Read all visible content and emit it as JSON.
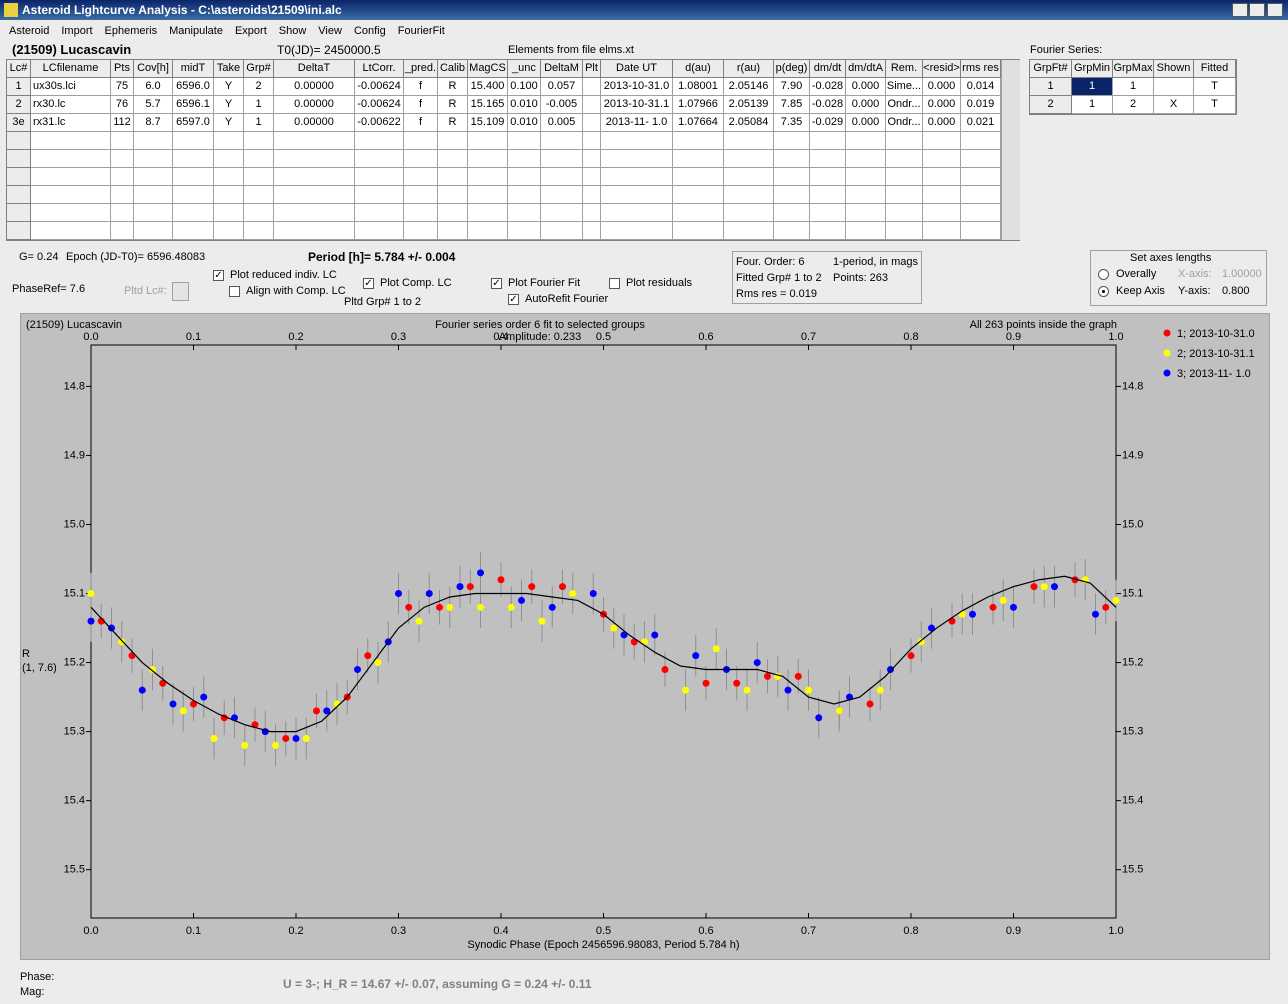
{
  "window": {
    "title": "Asteroid Lightcurve Analysis - C:\\asteroids\\21509\\ini.alc",
    "menu": [
      "Asteroid",
      "Import",
      "Ephemeris",
      "Manipulate",
      "Export",
      "Show",
      "View",
      "Config",
      "FourierFit"
    ]
  },
  "header": {
    "asteroid": "(21509) Lucascavin",
    "t0": "T0(JD)= 2450000.5",
    "elements": "Elements from file elms.xt"
  },
  "table": {
    "columns": [
      "Lc#",
      "LCfilename",
      "Pts",
      "Cov[h]",
      "midT",
      "Take",
      "Grp#",
      "DeltaT",
      "LtCorr.",
      "_pred.",
      "Calib",
      "MagCS",
      "_unc",
      "DeltaM",
      "Plt",
      "Date UT",
      "d(au)",
      "r(au)",
      "p(deg)",
      "dm/dt",
      "dm/dtA",
      "Rem.",
      "<resid>",
      "rms res"
    ],
    "rows": [
      [
        "1",
        "ux30s.lci",
        "75",
        "6.0",
        "6596.0",
        "Y",
        "2",
        "0.00000",
        "-0.00624",
        "f",
        "R",
        "15.400",
        "0.100",
        "0.057",
        null,
        "2013-10-31.0",
        "1.08001",
        "2.05146",
        "7.90",
        "-0.028",
        "0.000",
        "Sime...",
        "0.000",
        "0.014"
      ],
      [
        "2",
        "rx30.lc",
        "76",
        "5.7",
        "6596.1",
        "Y",
        "1",
        "0.00000",
        "-0.00624",
        "f",
        "R",
        "15.165",
        "0.010",
        "-0.005",
        null,
        "2013-10-31.1",
        "1.07966",
        "2.05139",
        "7.85",
        "-0.028",
        "0.000",
        "Ondr...",
        "0.000",
        "0.019"
      ],
      [
        "3e",
        "rx31.lc",
        "112",
        "8.7",
        "6597.0",
        "Y",
        "1",
        "0.00000",
        "-0.00622",
        "f",
        "R",
        "15.109",
        "0.010",
        "0.005",
        null,
        "2013-11- 1.0",
        "1.07664",
        "2.05084",
        "7.35",
        "-0.029",
        "0.000",
        "Ondr...",
        "0.000",
        "0.021"
      ]
    ]
  },
  "fourier_table": {
    "title": "Fourier Series:",
    "columns": [
      "GrpFt#",
      "GrpMin",
      "GrpMax",
      "Shown",
      "Fitted"
    ],
    "rows": [
      [
        "1",
        "1",
        "1",
        null,
        "T"
      ],
      [
        "2",
        "1",
        "2",
        "X",
        "T"
      ]
    ]
  },
  "controls": {
    "g": "G= 0.24",
    "epoch": "Epoch (JD-T0)= 6596.48083",
    "period": "Period [h]= 5.784 +/- 0.004",
    "phaseref": "PhaseRef= 7.6",
    "pltd_lc": "Pltd Lc#:",
    "pltd_grp": "Pltd Grp#  1   to   2",
    "checkboxes": [
      {
        "label": "Plot reduced indiv. LC",
        "checked": true
      },
      {
        "label": "Align with Comp. LC",
        "checked": false
      },
      {
        "label": "Plot Comp. LC",
        "checked": true
      },
      {
        "label": "Plot Fourier Fit",
        "checked": true
      },
      {
        "label": "AutoRefit Fourier",
        "checked": true
      },
      {
        "label": "Plot residuals",
        "checked": false
      }
    ]
  },
  "info": [
    "Four. Order:  6",
    "1-period, in mags",
    "Fitted Grp# 1 to 2",
    "Points: 263",
    "Rms res     = 0.019"
  ],
  "axes_box": {
    "title": "Set axes lengths",
    "radios": [
      {
        "label": "Overally",
        "checked": false
      },
      {
        "label": "Keep Axis",
        "checked": true
      }
    ],
    "x_label": "X-axis:",
    "x_value": "1.00000",
    "y_label": "Y-axis:",
    "y_value": "0.800"
  },
  "chart_data": {
    "type": "scatter",
    "object": "(21509) Lucascavin",
    "title": "Fourier series order 6 fit to selected groups",
    "subtitle": "Amplitude: 0.233",
    "annotation": "All 263 points inside the graph",
    "xlabel": "Synodic Phase (Epoch 2456596.98083, Period 5.784 h)",
    "ylabel": [
      "R",
      "(1, 7.6)"
    ],
    "xlim": [
      0,
      1
    ],
    "xticks": [
      {
        "value": 0,
        "label": "0.0"
      },
      0.1,
      0.2,
      0.3,
      0.4,
      0.5,
      0.6,
      0.7,
      0.8,
      0.9,
      {
        "value": 1,
        "label": "1.0"
      }
    ],
    "ylim": [
      15.57,
      14.74
    ],
    "yticks": [
      14.8,
      14.9,
      {
        "value": 15,
        "label": "15.0"
      },
      15.1,
      15.2,
      15.3,
      15.4,
      15.5
    ],
    "series": [
      {
        "name": "1; 2013-10-31.0",
        "color": "#ff0000",
        "error": 0.025,
        "x": [
          0.01,
          0.04,
          0.07,
          0.1,
          0.13,
          0.16,
          0.19,
          0.22,
          0.25,
          0.27,
          0.31,
          0.34,
          0.37,
          0.4,
          0.43,
          0.46,
          0.5,
          0.53,
          0.56,
          0.6,
          0.63,
          0.66,
          0.69,
          0.73,
          0.76,
          0.8,
          0.84,
          0.88,
          0.92,
          0.96,
          0.99
        ],
        "values": [
          15.14,
          15.19,
          15.23,
          15.26,
          15.28,
          15.29,
          15.31,
          15.27,
          15.25,
          15.19,
          15.12,
          15.12,
          15.09,
          15.08,
          15.09,
          15.09,
          15.13,
          15.17,
          15.21,
          15.23,
          15.23,
          15.22,
          15.22,
          15.27,
          15.26,
          15.19,
          15.14,
          15.12,
          15.09,
          15.08,
          15.12
        ]
      },
      {
        "name": "2; 2013-10-31.1",
        "color": "#ffff00",
        "error": 0.03,
        "x": [
          0.0,
          0.03,
          0.06,
          0.09,
          0.12,
          0.15,
          0.18,
          0.21,
          0.24,
          0.28,
          0.32,
          0.35,
          0.38,
          0.41,
          0.44,
          0.47,
          0.51,
          0.54,
          0.58,
          0.61,
          0.64,
          0.67,
          0.7,
          0.73,
          0.77,
          0.81,
          0.85,
          0.89,
          0.93,
          0.97,
          1.0
        ],
        "values": [
          15.1,
          15.17,
          15.21,
          15.27,
          15.31,
          15.32,
          15.32,
          15.31,
          15.26,
          15.2,
          15.14,
          15.12,
          15.12,
          15.12,
          15.14,
          15.1,
          15.15,
          15.17,
          15.24,
          15.18,
          15.24,
          15.22,
          15.24,
          15.27,
          15.24,
          15.17,
          15.13,
          15.11,
          15.09,
          15.08,
          15.11
        ]
      },
      {
        "name": "3; 2013-11- 1.0",
        "color": "#0000ff",
        "error": 0.03,
        "x": [
          0.0,
          0.02,
          0.05,
          0.08,
          0.11,
          0.14,
          0.17,
          0.2,
          0.23,
          0.26,
          0.29,
          0.3,
          0.33,
          0.36,
          0.38,
          0.42,
          0.45,
          0.49,
          0.52,
          0.55,
          0.59,
          0.62,
          0.65,
          0.68,
          0.71,
          0.74,
          0.78,
          0.82,
          0.86,
          0.9,
          0.94,
          0.98
        ],
        "values": [
          15.14,
          15.15,
          15.24,
          15.26,
          15.25,
          15.28,
          15.3,
          15.31,
          15.27,
          15.21,
          15.17,
          15.1,
          15.1,
          15.09,
          15.07,
          15.11,
          15.12,
          15.1,
          15.16,
          15.16,
          15.19,
          15.21,
          15.2,
          15.24,
          15.28,
          15.25,
          15.21,
          15.15,
          15.13,
          15.12,
          15.09,
          15.13
        ]
      }
    ],
    "fit": {
      "color": "#000000",
      "x": [
        0,
        0.025,
        0.05,
        0.075,
        0.1,
        0.125,
        0.15,
        0.175,
        0.2,
        0.225,
        0.25,
        0.275,
        0.3,
        0.325,
        0.35,
        0.375,
        0.4,
        0.425,
        0.45,
        0.475,
        0.5,
        0.525,
        0.55,
        0.575,
        0.6,
        0.625,
        0.65,
        0.675,
        0.7,
        0.725,
        0.75,
        0.775,
        0.8,
        0.825,
        0.85,
        0.875,
        0.9,
        0.925,
        0.95,
        0.975,
        1
      ],
      "values": [
        15.12,
        15.16,
        15.2,
        15.23,
        15.255,
        15.275,
        15.29,
        15.3,
        15.3,
        15.285,
        15.25,
        15.2,
        15.15,
        15.12,
        15.105,
        15.1,
        15.1,
        15.1,
        15.105,
        15.11,
        15.13,
        15.16,
        15.185,
        15.205,
        15.21,
        15.21,
        15.21,
        15.22,
        15.25,
        15.26,
        15.25,
        15.22,
        15.18,
        15.15,
        15.125,
        15.105,
        15.09,
        15.08,
        15.075,
        15.085,
        15.12
      ]
    }
  },
  "footer": {
    "phase": "Phase:",
    "mag": "Mag:",
    "result": "U = 3-; H_R = 14.67 +/- 0.07, assuming G = 0.24 +/- 0.11"
  }
}
